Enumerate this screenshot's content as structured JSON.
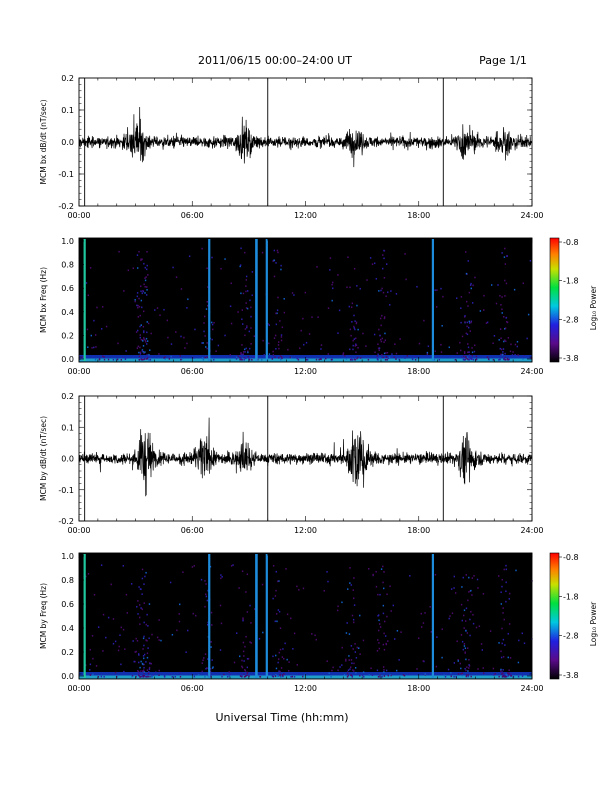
{
  "header": {
    "title": "2011/06/15  00:00–24:00 UT",
    "page": "Page 1/1"
  },
  "x_axis": {
    "label": "Universal Time (hh:mm)",
    "ticks": [
      "00:00",
      "06:00",
      "12:00",
      "18:00",
      "24:00"
    ]
  },
  "chart_data": [
    {
      "type": "line",
      "panel": "bx-timeseries",
      "ylabel": "MCM bx dB/dt (nT/sec)",
      "ylim": [
        -0.2,
        0.2
      ],
      "yticks": [
        "0.2",
        "0.1",
        "0.0",
        "-0.1",
        "-0.2"
      ],
      "xlim": [
        0,
        24
      ],
      "markers_hours": [
        0.3,
        10,
        19.3
      ],
      "bursts": [
        {
          "center_hour": 3.1,
          "amplitude": 0.12
        },
        {
          "center_hour": 8.8,
          "amplitude": 0.07
        },
        {
          "center_hour": 14.6,
          "amplitude": 0.06
        },
        {
          "center_hour": 20.5,
          "amplitude": 0.07
        },
        {
          "center_hour": 22.5,
          "amplitude": 0.06
        }
      ]
    },
    {
      "type": "heatmap",
      "panel": "bx-spectrogram",
      "ylabel": "MCM bx Freq (Hz)",
      "ylim": [
        0,
        1.0
      ],
      "yticks": [
        "1.0",
        "0.8",
        "0.6",
        "0.4",
        "0.2",
        "0.0"
      ],
      "xlim": [
        0,
        24
      ],
      "colorbar": {
        "label": "Log₁₀ Power",
        "ticks": [
          "-0.8",
          "-1.8",
          "-2.8",
          "-3.8"
        ]
      },
      "lines_hours": [
        0.3,
        6.9,
        9.4,
        9.95,
        18.75
      ]
    },
    {
      "type": "line",
      "panel": "by-timeseries",
      "ylabel": "MCM by dB/dt (nT/sec)",
      "ylim": [
        -0.2,
        0.2
      ],
      "yticks": [
        "0.2",
        "0.1",
        "0.0",
        "-0.1",
        "-0.2"
      ],
      "xlim": [
        0,
        24
      ],
      "markers_hours": [
        0.3,
        10,
        19.3
      ],
      "bursts": [
        {
          "center_hour": 3.5,
          "amplitude": 0.17
        },
        {
          "center_hour": 8.7,
          "amplitude": 0.08
        },
        {
          "center_hour": 14.8,
          "amplitude": 0.18
        },
        {
          "center_hour": 6.6,
          "amplitude": 0.12
        },
        {
          "center_hour": 20.5,
          "amplitude": 0.1
        }
      ]
    },
    {
      "type": "heatmap",
      "panel": "by-spectrogram",
      "ylabel": "MCM by Freq (Hz)",
      "ylim": [
        0,
        1.0
      ],
      "yticks": [
        "1.0",
        "0.8",
        "0.6",
        "0.4",
        "0.2",
        "0.0"
      ],
      "xlim": [
        0,
        24
      ],
      "colorbar": {
        "label": "Log₁₀ Power",
        "ticks": [
          "-0.8",
          "-1.8",
          "-2.8",
          "-3.8"
        ]
      },
      "lines_hours": [
        0.3,
        6.9,
        9.4,
        9.95,
        18.75
      ]
    }
  ]
}
